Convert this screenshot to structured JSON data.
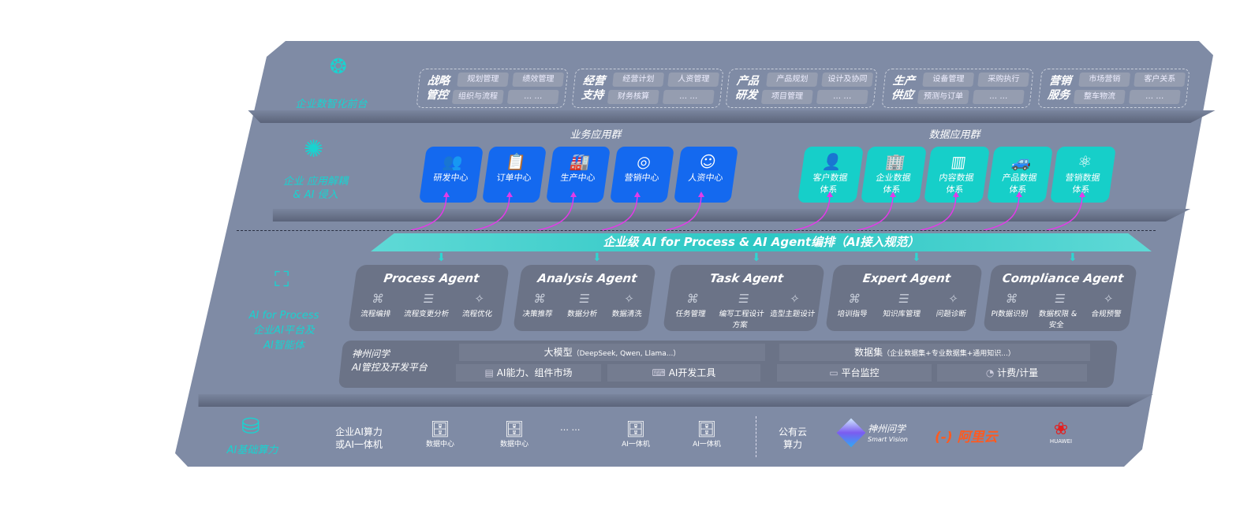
{
  "front": {
    "label": "企业数智化前台",
    "icon": "brain-icon",
    "groups": [
      {
        "title": "战略管控",
        "chips": [
          "规划管理",
          "绩效管理",
          "组织与流程",
          "… …"
        ]
      },
      {
        "title": "经营支持",
        "chips": [
          "经营计划",
          "人资管理",
          "财务核算",
          "… …"
        ]
      },
      {
        "title": "产品研发",
        "chips": [
          "产品规划",
          "设计及协同",
          "项目管理",
          "… …"
        ]
      },
      {
        "title": "生产供应",
        "chips": [
          "设备管理",
          "采购执行",
          "预测与订单",
          "… …"
        ]
      },
      {
        "title": "营销服务",
        "chips": [
          "市场营销",
          "客户关系",
          "整车物流",
          "… …"
        ]
      }
    ]
  },
  "apps": {
    "label1": "企业 应用解耦",
    "label2": "& AI 侵入",
    "icon": "molecule-icon",
    "business_title": "业务应用群",
    "data_title": "数据应用群",
    "business": [
      {
        "label": "研发中心",
        "icon": "users-icon"
      },
      {
        "label": "订单中心",
        "icon": "clipboard-icon"
      },
      {
        "label": "生产中心",
        "icon": "factory-icon"
      },
      {
        "label": "营销中心",
        "icon": "target-icon"
      },
      {
        "label": "人资中心",
        "icon": "person-icon"
      }
    ],
    "data": [
      {
        "l1": "客户数据",
        "l2": "体系",
        "icon": "user-icon"
      },
      {
        "l1": "企业数据",
        "l2": "体系",
        "icon": "building-icon"
      },
      {
        "l1": "内容数据",
        "l2": "体系",
        "icon": "books-icon"
      },
      {
        "l1": "产品数据",
        "l2": "体系",
        "icon": "car-icon"
      },
      {
        "l1": "营销数据",
        "l2": "体系",
        "icon": "atom-icon"
      }
    ]
  },
  "orchestration": "企业级 AI for Process & AI Agent编排（AI接入规范）",
  "ai": {
    "label1": "AI for Process",
    "label2": "企业AI平台及",
    "label3": "AI智能体",
    "icon": "face-scan-icon",
    "agents": [
      {
        "name": "Process Agent",
        "items": [
          "流程编排",
          "流程变更分析",
          "流程优化"
        ]
      },
      {
        "name": "Analysis Agent",
        "items": [
          "决策推荐",
          "数据分析",
          "数据清洗"
        ]
      },
      {
        "name": "Task Agent",
        "items": [
          "任务管理",
          "编写工程设计方案",
          "造型主题设计"
        ]
      },
      {
        "name": "Expert Agent",
        "items": [
          "培训指导",
          "知识库管理",
          "问题诊断"
        ]
      },
      {
        "name": "Compliance Agent",
        "items": [
          "PI数据识别",
          "数据权限 & 安全",
          "合规预警"
        ]
      }
    ],
    "platform": {
      "l1": "神州问学",
      "l2": "AI管控及开发平台",
      "model": "大模型",
      "model_note": "（DeepSeek, Qwen, Llama...）",
      "dataset": "数据集",
      "dataset_note": "（企业数据集+专业数据集+通用知识...）",
      "market": "AI能力、组件市场",
      "devtools": "AI开发工具",
      "monitor": "平台监控",
      "billing": "计费/计量"
    }
  },
  "infra": {
    "label": "AI基础算力",
    "icon": "database-icon",
    "enterprise1": "企业AI算力",
    "enterprise2": "或AI一体机",
    "servers": [
      "数据中心",
      "数据中心",
      "AI一体机",
      "AI一体机"
    ],
    "ellipsis": "… …",
    "cloud1": "公有云",
    "cloud2": "算力",
    "vendors": {
      "sv": "神州问学",
      "sv_en": "Smart Vision",
      "aliyun": "阿里云",
      "huawei": "HUAWEI"
    },
    "colors": {
      "aliyun": "#ff5a1f",
      "huawei": "#e41f1f",
      "teal": "#19d3d0",
      "blue": "#1469ef"
    }
  }
}
